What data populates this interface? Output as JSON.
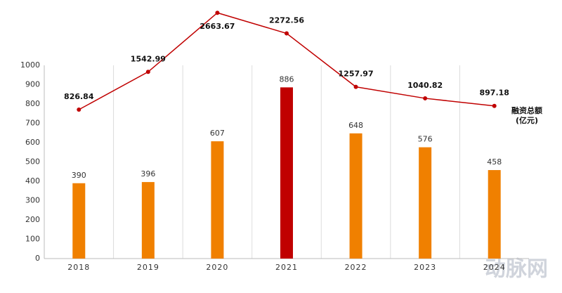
{
  "chart_data": {
    "type": "bar-line",
    "categories": [
      "2018",
      "2019",
      "2020",
      "2021",
      "2022",
      "2023",
      "2024"
    ],
    "series": [
      {
        "values": [
          390,
          396,
          607,
          886,
          648,
          576,
          458
        ],
        "colors": [
          "#f08000",
          "#f08000",
          "#f08000",
          "#c00000",
          "#f08000",
          "#f08000",
          "#f08000"
        ]
      },
      {
        "name": "融资总额",
        "label_unit": "(亿元)",
        "axis": "y2",
        "color": "#c00000",
        "values": [
          826.84,
          1542.99,
          2663.67,
          2272.56,
          1257.97,
          1040.82,
          897.18
        ]
      }
    ],
    "ylim": [
      0,
      1000
    ],
    "yticks": [
      0,
      100,
      200,
      300,
      400,
      500,
      600,
      700,
      800,
      900,
      1000
    ],
    "y2lim": [
      -2000,
      2800
    ],
    "grid": true,
    "watermark": "动脉网"
  }
}
